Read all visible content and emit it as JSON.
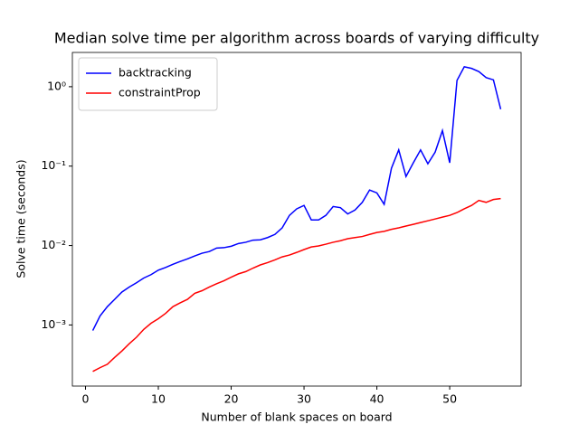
{
  "chart_data": {
    "type": "line",
    "title": "Median solve time per algorithm across boards of varying difficulty",
    "xlabel": "Number of blank spaces on board",
    "ylabel": "Solve time (seconds)",
    "x": [
      1,
      2,
      3,
      4,
      5,
      6,
      7,
      8,
      9,
      10,
      11,
      12,
      13,
      14,
      15,
      16,
      17,
      18,
      19,
      20,
      21,
      22,
      23,
      24,
      25,
      26,
      27,
      28,
      29,
      30,
      31,
      32,
      33,
      34,
      35,
      36,
      37,
      38,
      39,
      40,
      41,
      42,
      43,
      44,
      45,
      46,
      47,
      48,
      49,
      50,
      51,
      52,
      53,
      54,
      55,
      56,
      57
    ],
    "series": [
      {
        "name": "backtracking",
        "color": "#0000ff",
        "values": [
          0.00085,
          0.0013,
          0.0017,
          0.0021,
          0.0026,
          0.003,
          0.0034,
          0.0039,
          0.0043,
          0.0049,
          0.0053,
          0.0058,
          0.0063,
          0.0068,
          0.0074,
          0.008,
          0.0084,
          0.0093,
          0.0094,
          0.0098,
          0.0106,
          0.011,
          0.0117,
          0.0118,
          0.0126,
          0.0138,
          0.0167,
          0.024,
          0.029,
          0.032,
          0.021,
          0.021,
          0.024,
          0.031,
          0.03,
          0.025,
          0.028,
          0.035,
          0.05,
          0.046,
          0.033,
          0.094,
          0.16,
          0.074,
          0.11,
          0.16,
          0.107,
          0.15,
          0.28,
          0.11,
          1.2,
          1.78,
          1.7,
          1.55,
          1.3,
          1.22,
          0.52
        ]
      },
      {
        "name": "constraintProp",
        "color": "#ff0000",
        "values": [
          0.00026,
          0.00029,
          0.00032,
          0.00039,
          0.00047,
          0.00058,
          0.0007,
          0.00088,
          0.00105,
          0.0012,
          0.0014,
          0.0017,
          0.0019,
          0.0021,
          0.0025,
          0.0027,
          0.003,
          0.0033,
          0.0036,
          0.004,
          0.0044,
          0.0047,
          0.0052,
          0.0057,
          0.0061,
          0.0066,
          0.0072,
          0.0076,
          0.0082,
          0.0089,
          0.0096,
          0.0099,
          0.0104,
          0.011,
          0.0115,
          0.0122,
          0.0126,
          0.013,
          0.0138,
          0.0146,
          0.0151,
          0.016,
          0.0167,
          0.0176,
          0.0185,
          0.0195,
          0.0205,
          0.0216,
          0.0228,
          0.024,
          0.026,
          0.029,
          0.032,
          0.037,
          0.035,
          0.038,
          0.039
        ]
      }
    ],
    "xlim": [
      -1.8,
      59.8
    ],
    "xticks": [
      0,
      10,
      20,
      30,
      40,
      50
    ],
    "ylim": [
      0.00017,
      2.7
    ],
    "yticks": [
      {
        "value": 0.001,
        "label": "10⁻³"
      },
      {
        "value": 0.01,
        "label": "10⁻²"
      },
      {
        "value": 0.1,
        "label": "10⁻¹"
      },
      {
        "value": 1,
        "label": "10⁰"
      }
    ],
    "log_y": true,
    "grid": false,
    "legend": "upper left"
  }
}
